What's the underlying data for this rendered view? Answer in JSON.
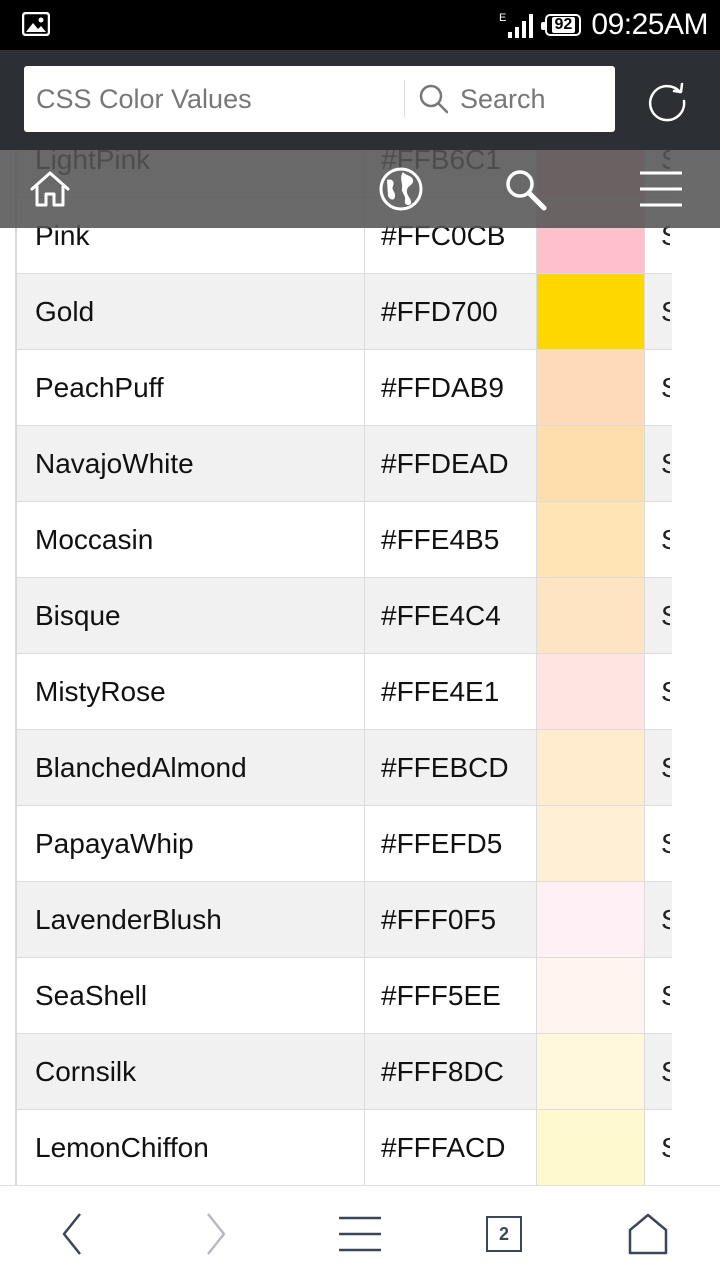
{
  "status_bar": {
    "time": "09:25AM",
    "battery": "92",
    "network_label": "E"
  },
  "browser": {
    "url_text": "CSS Color Values",
    "search_label": "Search"
  },
  "table": {
    "rows": [
      {
        "name": "LightPink",
        "hex": "#FFB6C1",
        "color": "#FFB6C1",
        "extra": "S"
      },
      {
        "name": "Pink",
        "hex": "#FFC0CB",
        "color": "#FFC0CB",
        "extra": "S"
      },
      {
        "name": "Gold",
        "hex": "#FFD700",
        "color": "#FFD700",
        "extra": "S"
      },
      {
        "name": "PeachPuff",
        "hex": "#FFDAB9",
        "color": "#FFDAB9",
        "extra": "S"
      },
      {
        "name": "NavajoWhite",
        "hex": "#FFDEAD",
        "color": "#FFDEAD",
        "extra": "S"
      },
      {
        "name": "Moccasin",
        "hex": "#FFE4B5",
        "color": "#FFE4B5",
        "extra": "S"
      },
      {
        "name": "Bisque",
        "hex": "#FFE4C4",
        "color": "#FFE4C4",
        "extra": "S"
      },
      {
        "name": "MistyRose",
        "hex": "#FFE4E1",
        "color": "#FFE4E1",
        "extra": "S"
      },
      {
        "name": "BlanchedAlmond",
        "hex": "#FFEBCD",
        "color": "#FFEBCD",
        "extra": "S"
      },
      {
        "name": "PapayaWhip",
        "hex": "#FFEFD5",
        "color": "#FFEFD5",
        "extra": "S"
      },
      {
        "name": "LavenderBlush",
        "hex": "#FFF0F5",
        "color": "#FFF0F5",
        "extra": "S"
      },
      {
        "name": "SeaShell",
        "hex": "#FFF5EE",
        "color": "#FFF5EE",
        "extra": "S"
      },
      {
        "name": "Cornsilk",
        "hex": "#FFF8DC",
        "color": "#FFF8DC",
        "extra": "S"
      },
      {
        "name": "LemonChiffon",
        "hex": "#FFFACD",
        "color": "#FFFACD",
        "extra": "S"
      },
      {
        "name": "",
        "hex": "",
        "color": "#FFFAF0",
        "extra": ""
      }
    ]
  },
  "bottom_nav": {
    "tab_count": "2"
  },
  "colors": {
    "status_bar_bg": "#000000",
    "browser_bar_bg": "#2c2f33",
    "overlay_toolbar_bg": "#555555",
    "nav_icon_color": "#3b4658"
  }
}
